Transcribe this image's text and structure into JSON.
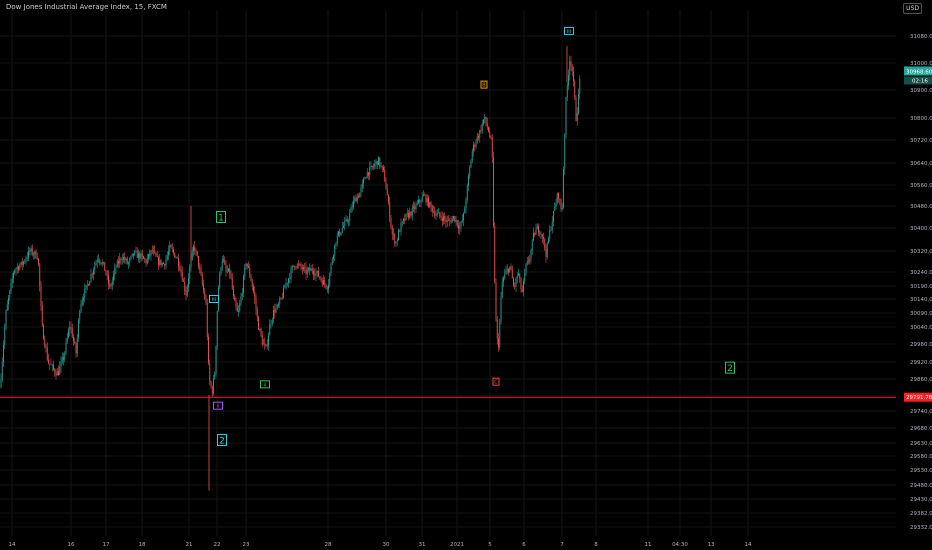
{
  "header": {
    "title": "Dow Jones Industrial Average Index, 15, FXCM",
    "currency": "USD"
  },
  "colors": {
    "background": "#000000",
    "grid": "#141414",
    "up": "#26a69a",
    "down": "#ef5350",
    "axis_text": "#b2b5be",
    "hline": "#ff1e1e",
    "wave_green": "#22c55e",
    "wave_cyan": "#22d3ee",
    "wave_orange": "#f59e0b",
    "wave_red": "#ef4444",
    "wave_purple": "#a855f7",
    "price_tag": "#26a69a"
  },
  "chart_data": {
    "type": "candlestick",
    "title": "Dow Jones Industrial Average Index, 15, FXCM",
    "ylim": [
      29312,
      31150
    ],
    "y_ticks": [
      31080,
      31000,
      30900,
      30800,
      30720,
      30640,
      30560,
      30480,
      30400,
      30320,
      30240,
      30190,
      30140,
      30090,
      30040,
      29980,
      29920,
      29860,
      29800,
      29740,
      29680,
      29630,
      29580,
      29530,
      29480,
      29430,
      29382,
      29332
    ],
    "y_tick_labels": [
      "31080.00",
      "31000.00",
      "30900.00",
      "30800.00",
      "30720.00",
      "30640.00",
      "30560.00",
      "30480.00",
      "30400.00",
      "30320.00",
      "30240.00",
      "30190.00",
      "30140.00",
      "30090.00",
      "30040.00",
      "29980.00",
      "29920.00",
      "29860.00",
      "29800.00",
      "29740.00",
      "29680.00",
      "29630.00",
      "29580.00",
      "29530.00",
      "29480.00",
      "29430.00",
      "29382.00",
      "29332.00"
    ],
    "x_tick_labels": [
      "14",
      "16",
      "17",
      "18",
      "21",
      "22",
      "23",
      "28",
      "30",
      "31",
      "2021",
      "5",
      "6",
      "7",
      "8",
      "11",
      "04:30",
      "13",
      "14"
    ],
    "price_path": [
      [
        0,
        29830
      ],
      [
        6,
        30090
      ],
      [
        14,
        30250
      ],
      [
        22,
        30270
      ],
      [
        30,
        30320
      ],
      [
        38,
        30300
      ],
      [
        42,
        30040
      ],
      [
        48,
        29920
      ],
      [
        54,
        29890
      ],
      [
        58,
        29880
      ],
      [
        64,
        29940
      ],
      [
        70,
        30050
      ],
      [
        76,
        29950
      ],
      [
        80,
        30120
      ],
      [
        86,
        30180
      ],
      [
        92,
        30240
      ],
      [
        98,
        30300
      ],
      [
        104,
        30260
      ],
      [
        110,
        30180
      ],
      [
        116,
        30260
      ],
      [
        122,
        30300
      ],
      [
        128,
        30270
      ],
      [
        134,
        30310
      ],
      [
        140,
        30300
      ],
      [
        146,
        30280
      ],
      [
        152,
        30320
      ],
      [
        158,
        30280
      ],
      [
        164,
        30270
      ],
      [
        170,
        30330
      ],
      [
        176,
        30300
      ],
      [
        180,
        30260
      ],
      [
        186,
        30160
      ],
      [
        190,
        30260
      ],
      [
        194,
        30340
      ],
      [
        198,
        30280
      ],
      [
        202,
        30200
      ],
      [
        206,
        30120
      ],
      [
        209,
        29860
      ],
      [
        212,
        29810
      ],
      [
        215,
        29890
      ],
      [
        218,
        30170
      ],
      [
        222,
        30300
      ],
      [
        226,
        30240
      ],
      [
        230,
        30240
      ],
      [
        234,
        30130
      ],
      [
        238,
        30080
      ],
      [
        242,
        30170
      ],
      [
        246,
        30280
      ],
      [
        250,
        30230
      ],
      [
        254,
        30160
      ],
      [
        258,
        30050
      ],
      [
        262,
        29990
      ],
      [
        266,
        29960
      ],
      [
        270,
        30050
      ],
      [
        274,
        30100
      ],
      [
        278,
        30110
      ],
      [
        282,
        30150
      ],
      [
        286,
        30200
      ],
      [
        290,
        30230
      ],
      [
        294,
        30270
      ],
      [
        300,
        30260
      ],
      [
        306,
        30240
      ],
      [
        312,
        30250
      ],
      [
        318,
        30230
      ],
      [
        324,
        30200
      ],
      [
        328,
        30190
      ],
      [
        332,
        30290
      ],
      [
        336,
        30360
      ],
      [
        342,
        30400
      ],
      [
        348,
        30430
      ],
      [
        354,
        30500
      ],
      [
        360,
        30530
      ],
      [
        366,
        30600
      ],
      [
        372,
        30620
      ],
      [
        378,
        30650
      ],
      [
        384,
        30600
      ],
      [
        388,
        30500
      ],
      [
        392,
        30380
      ],
      [
        396,
        30350
      ],
      [
        400,
        30400
      ],
      [
        406,
        30440
      ],
      [
        412,
        30460
      ],
      [
        418,
        30490
      ],
      [
        424,
        30520
      ],
      [
        430,
        30480
      ],
      [
        436,
        30450
      ],
      [
        442,
        30440
      ],
      [
        448,
        30420
      ],
      [
        454,
        30440
      ],
      [
        460,
        30400
      ],
      [
        464,
        30450
      ],
      [
        468,
        30570
      ],
      [
        472,
        30680
      ],
      [
        476,
        30720
      ],
      [
        480,
        30750
      ],
      [
        484,
        30800
      ],
      [
        488,
        30760
      ],
      [
        492,
        30700
      ],
      [
        494,
        30300
      ],
      [
        496,
        30060
      ],
      [
        498,
        29950
      ],
      [
        502,
        30200
      ],
      [
        506,
        30240
      ],
      [
        510,
        30260
      ],
      [
        514,
        30180
      ],
      [
        518,
        30240
      ],
      [
        522,
        30160
      ],
      [
        526,
        30260
      ],
      [
        530,
        30300
      ],
      [
        534,
        30380
      ],
      [
        538,
        30400
      ],
      [
        542,
        30380
      ],
      [
        546,
        30310
      ],
      [
        550,
        30390
      ],
      [
        554,
        30460
      ],
      [
        558,
        30530
      ],
      [
        562,
        30450
      ],
      [
        564,
        30680
      ],
      [
        566,
        30860
      ],
      [
        568,
        30950
      ],
      [
        570,
        31020
      ],
      [
        572,
        30980
      ],
      [
        574,
        30900
      ],
      [
        576,
        30800
      ],
      [
        578,
        30850
      ],
      [
        580,
        30950
      ]
    ],
    "horizontal_line": {
      "value": 29791.78,
      "label": "29791.78"
    },
    "last_price": {
      "value": 30968.6,
      "label": "30968.60",
      "timer": "02:16"
    },
    "wave_labels": [
      {
        "text": "1",
        "x": 221,
        "y": 30440,
        "color": "#22c55e",
        "size": "large"
      },
      {
        "text": "2",
        "x": 222,
        "y": 29640,
        "color": "#22d3ee",
        "size": "large"
      },
      {
        "text": "2",
        "x": 730,
        "y": 29900,
        "color": "#22c55e",
        "size": "large"
      },
      {
        "text": "iii",
        "x": 214,
        "y": 30140,
        "color": "#22d3ee",
        "size": "small"
      },
      {
        "text": "ii",
        "x": 218,
        "y": 29760,
        "color": "#a855f7",
        "size": "small"
      },
      {
        "text": "ii",
        "x": 265,
        "y": 29840,
        "color": "#22c55e",
        "size": "small"
      },
      {
        "text": "B",
        "x": 484,
        "y": 30920,
        "color": "#f59e0b",
        "size": "small"
      },
      {
        "text": "C",
        "x": 496,
        "y": 29850,
        "color": "#ef4444",
        "size": "small"
      },
      {
        "text": "iii",
        "x": 569,
        "y": 31095,
        "color": "#22d3ee",
        "size": "small"
      }
    ]
  }
}
